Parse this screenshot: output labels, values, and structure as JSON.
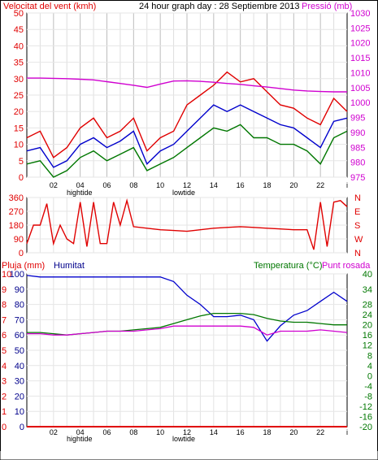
{
  "header": {
    "title_left": "Velocitat del vent (kmh)",
    "title_center": "24 hour graph day : 28 Septiembre 2013",
    "title_right": "Pressió (mb)"
  },
  "colors": {
    "frame": "#000000",
    "grid": "#c0c0c0",
    "red": "#e00000",
    "green": "#007700",
    "blue": "#0000cc",
    "magenta": "#d000d0",
    "darkgreen": "#007700",
    "hum_blue": "#00008b"
  },
  "x_labels": [
    "02",
    "04",
    "06",
    "08",
    "10",
    "12",
    "14",
    "16",
    "18",
    "20",
    "22",
    "i"
  ],
  "tide_labels": [
    "hightide",
    "lowtide",
    "hightide",
    "lowtide"
  ],
  "chart_data": [
    {
      "type": "line",
      "name": "wind_pressure",
      "title": "24 hour graph day : 28 Septiembre 2013",
      "ylabel_left": "Velocitat del vent (kmh)",
      "ylabel_right": "Pressió (mb)",
      "ylim_left": [
        0,
        50
      ],
      "ylim_right": [
        975,
        1030
      ],
      "yticks_left": [
        0,
        5,
        10,
        15,
        20,
        25,
        30,
        35,
        40,
        45,
        50
      ],
      "yticks_right": [
        975,
        980,
        985,
        990,
        995,
        1000,
        1005,
        1010,
        1015,
        1020,
        1025,
        1030
      ],
      "x": [
        0,
        1,
        2,
        3,
        4,
        5,
        6,
        7,
        8,
        9,
        10,
        11,
        12,
        13,
        14,
        15,
        16,
        17,
        18,
        19,
        20,
        21,
        22,
        23,
        24
      ],
      "series": [
        {
          "name": "gust",
          "axis": "left",
          "values": [
            12,
            14,
            6,
            9,
            15,
            18,
            12,
            14,
            18,
            8,
            12,
            14,
            22,
            25,
            28,
            32,
            29,
            30,
            26,
            22,
            21,
            18,
            16,
            24,
            20
          ]
        },
        {
          "name": "average",
          "axis": "left",
          "values": [
            8,
            9,
            3,
            5,
            10,
            12,
            9,
            11,
            14,
            4,
            8,
            10,
            14,
            18,
            22,
            20,
            22,
            20,
            18,
            16,
            15,
            12,
            9,
            17,
            18
          ]
        },
        {
          "name": "minimum",
          "axis": "left",
          "values": [
            4,
            5,
            0,
            2,
            6,
            8,
            5,
            7,
            9,
            2,
            4,
            6,
            9,
            12,
            15,
            14,
            16,
            12,
            12,
            10,
            10,
            8,
            4,
            12,
            14
          ]
        },
        {
          "name": "pressure",
          "axis": "right",
          "values": [
            1008.2,
            1008.2,
            1008.1,
            1008.0,
            1007.8,
            1007.6,
            1007.0,
            1006.4,
            1005.8,
            1005.1,
            1006.2,
            1007.2,
            1007.3,
            1007.1,
            1006.8,
            1006.4,
            1006.1,
            1005.6,
            1005.2,
            1004.7,
            1004.2,
            1003.9,
            1003.7,
            1003.6,
            1003.6
          ]
        }
      ]
    },
    {
      "type": "line",
      "name": "wind_direction",
      "ylim": [
        0,
        360
      ],
      "yticks": [
        0,
        90,
        180,
        270,
        360
      ],
      "ylabels_right": [
        "N",
        "W",
        "S",
        "E",
        "N"
      ],
      "x": [
        0,
        0.5,
        1,
        1.5,
        2,
        2.5,
        3,
        3.5,
        4,
        4.5,
        5,
        5.5,
        6,
        6.5,
        7,
        7.5,
        8,
        9,
        10,
        11,
        12,
        13,
        14,
        15,
        16,
        17,
        18,
        19,
        20,
        21,
        21.5,
        22,
        22.5,
        23,
        23.5,
        24
      ],
      "values": [
        60,
        180,
        180,
        320,
        60,
        180,
        90,
        60,
        330,
        40,
        330,
        60,
        60,
        330,
        180,
        340,
        170,
        160,
        150,
        145,
        140,
        150,
        160,
        165,
        170,
        165,
        160,
        155,
        150,
        150,
        20,
        330,
        40,
        330,
        340,
        300
      ]
    },
    {
      "type": "line",
      "name": "rain_humidity_temp",
      "ylabel_left_rain": "Pluja (mm)",
      "ylabel_left_hum": "Humitat",
      "ylabel_right": "Temperatura (°C)",
      "ylabel_right2": "Punt rosada",
      "ylim_rain": [
        0,
        10
      ],
      "ylim_hum": [
        0,
        100
      ],
      "ylim_temp": [
        -20,
        40
      ],
      "yticks_rain": [
        0,
        1,
        2,
        3,
        4,
        5,
        6,
        7,
        8,
        9,
        10
      ],
      "yticks_hum": [
        0,
        10,
        20,
        30,
        40,
        50,
        60,
        70,
        80,
        90,
        100
      ],
      "yticks_temp": [
        -20,
        -16,
        -12,
        -8,
        -4,
        0,
        4,
        8,
        12,
        16,
        20,
        24,
        28,
        34,
        40
      ],
      "x": [
        0,
        1,
        2,
        3,
        4,
        5,
        6,
        7,
        8,
        9,
        10,
        11,
        12,
        13,
        14,
        15,
        16,
        17,
        18,
        19,
        20,
        21,
        22,
        23,
        24
      ],
      "series": [
        {
          "name": "rain",
          "axis": "rain",
          "values": [
            0,
            0,
            0,
            0,
            0,
            0,
            0,
            0,
            0,
            0,
            0,
            0,
            0,
            0,
            0,
            0,
            0,
            0,
            0,
            0,
            0,
            0,
            0,
            0,
            0
          ]
        },
        {
          "name": "humidity",
          "axis": "hum",
          "values": [
            99,
            98,
            98,
            98,
            98,
            98,
            98,
            98,
            98,
            98,
            98,
            95,
            86,
            80,
            72,
            72,
            73,
            70,
            56,
            66,
            73,
            76,
            82,
            88,
            82
          ]
        },
        {
          "name": "temperature",
          "axis": "temp",
          "values": [
            17,
            17,
            16.5,
            16,
            16.5,
            17,
            17.5,
            17.5,
            18,
            18.5,
            19,
            20.5,
            22,
            23.5,
            24.5,
            24.5,
            24.5,
            24,
            22.5,
            21.5,
            21,
            21,
            20.5,
            20,
            20
          ]
        },
        {
          "name": "dewpoint",
          "axis": "temp",
          "values": [
            16.5,
            16.5,
            16,
            16,
            16.5,
            17,
            17.5,
            17.5,
            17.5,
            18,
            18.5,
            19.5,
            19.5,
            19.5,
            19.5,
            19.5,
            19.5,
            19,
            16,
            17.5,
            17.5,
            17.5,
            18,
            17.5,
            17
          ]
        }
      ]
    }
  ]
}
